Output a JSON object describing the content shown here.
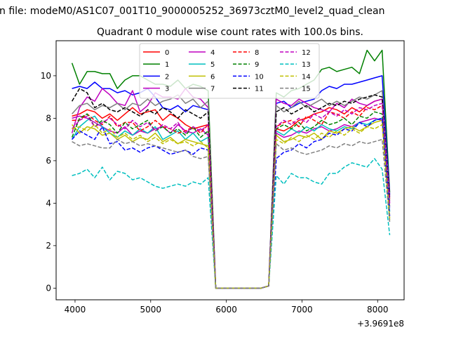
{
  "suptitle": "n file: modeM0/AS1C07_001T10_9000005252_36973cztM0_level2_quad_clean",
  "chart_data": {
    "type": "line",
    "title": "Quadrant 0 module wise count rates with 100.0s bins.",
    "xlabel": "",
    "ylabel": "",
    "x_offset_label": "+3.9691e8",
    "xlim": [
      3750,
      8350
    ],
    "ylim": [
      -0.55,
      11.65
    ],
    "xticks": [
      4000,
      5000,
      6000,
      7000,
      8000
    ],
    "yticks": [
      0,
      2,
      4,
      6,
      8,
      10
    ],
    "grid": false,
    "legend_position": "upper-center",
    "legend_columns": 4,
    "x": [
      3960,
      4060,
      4160,
      4260,
      4360,
      4460,
      4560,
      4660,
      4760,
      4860,
      4960,
      5060,
      5160,
      5260,
      5360,
      5460,
      5560,
      5660,
      5760,
      5860,
      5960,
      6060,
      6160,
      6260,
      6360,
      6460,
      6560,
      6660,
      6760,
      6860,
      6960,
      7060,
      7160,
      7260,
      7360,
      7460,
      7560,
      7660,
      7760,
      7860,
      7960,
      8060,
      8160
    ],
    "series": [
      {
        "name": "0",
        "color": "#ff0000",
        "dash": "solid",
        "values": [
          8.1,
          8.2,
          8.4,
          8.3,
          8.0,
          8.2,
          7.9,
          8.2,
          8.5,
          8.2,
          8.3,
          8.4,
          7.9,
          8.2,
          8.0,
          7.7,
          7.5,
          7.6,
          7.7,
          0.0,
          0.0,
          0.0,
          0.0,
          0.0,
          0.0,
          0.0,
          0.1,
          7.5,
          7.4,
          7.6,
          7.9,
          8.0,
          8.2,
          8.3,
          8.5,
          8.4,
          8.2,
          8.5,
          8.3,
          8.6,
          8.8,
          8.9,
          4.2
        ]
      },
      {
        "name": "1",
        "color": "#008000",
        "dash": "solid",
        "values": [
          10.6,
          9.6,
          10.2,
          10.2,
          10.1,
          10.1,
          9.4,
          9.8,
          10.0,
          10.0,
          9.8,
          9.6,
          9.6,
          9.5,
          9.8,
          9.4,
          9.6,
          9.5,
          9.3,
          0.0,
          0.0,
          0.0,
          0.0,
          0.0,
          0.0,
          0.0,
          0.1,
          9.2,
          9.0,
          9.3,
          9.4,
          9.6,
          9.8,
          10.3,
          10.4,
          10.2,
          10.3,
          10.4,
          10.1,
          11.2,
          10.7,
          11.2,
          4.5
        ]
      },
      {
        "name": "2",
        "color": "#0000ff",
        "dash": "solid",
        "values": [
          9.4,
          9.5,
          9.4,
          9.7,
          9.4,
          9.4,
          9.2,
          9.3,
          9.1,
          9.2,
          9.4,
          9.0,
          8.5,
          8.4,
          8.6,
          8.3,
          8.6,
          8.5,
          8.4,
          0.0,
          0.0,
          0.0,
          0.0,
          0.0,
          0.0,
          0.0,
          0.1,
          8.7,
          8.8,
          8.5,
          8.7,
          8.8,
          8.9,
          9.3,
          9.5,
          9.4,
          9.6,
          9.6,
          9.7,
          9.8,
          9.9,
          10.0,
          4.4
        ]
      },
      {
        "name": "3",
        "color": "#bf00bf",
        "dash": "solid",
        "values": [
          8.0,
          8.1,
          8.0,
          7.8,
          7.6,
          7.4,
          7.3,
          7.6,
          7.2,
          7.4,
          7.3,
          7.5,
          7.6,
          7.3,
          7.7,
          7.4,
          7.3,
          7.5,
          7.2,
          0.0,
          0.0,
          0.0,
          0.0,
          0.0,
          0.0,
          0.0,
          0.1,
          7.3,
          7.1,
          7.2,
          7.4,
          7.3,
          7.5,
          7.6,
          7.4,
          7.5,
          7.7,
          7.6,
          7.8,
          7.9,
          8.0,
          7.9,
          3.8
        ]
      },
      {
        "name": "4",
        "color": "#bf00bf",
        "dash": "solid",
        "values": [
          7.3,
          8.5,
          9.0,
          8.8,
          9.4,
          9.1,
          8.7,
          8.6,
          9.3,
          8.3,
          8.6,
          9.2,
          9.0,
          9.0,
          8.9,
          9.4,
          9.0,
          8.9,
          8.5,
          0.0,
          0.0,
          0.0,
          0.0,
          0.0,
          0.0,
          0.0,
          0.1,
          8.9,
          8.7,
          8.6,
          8.9,
          8.7,
          8.5,
          8.4,
          8.3,
          8.7,
          8.5,
          8.9,
          8.7,
          8.6,
          8.8,
          8.9,
          4.3
        ]
      },
      {
        "name": "5",
        "color": "#00bfbf",
        "dash": "solid",
        "values": [
          7.0,
          7.6,
          7.9,
          8.1,
          7.6,
          7.3,
          7.1,
          7.4,
          7.2,
          7.5,
          7.3,
          7.6,
          7.0,
          7.2,
          7.4,
          7.0,
          7.3,
          6.9,
          7.1,
          0.0,
          0.0,
          0.0,
          0.0,
          0.0,
          0.0,
          0.0,
          0.1,
          7.4,
          7.2,
          7.5,
          7.3,
          7.6,
          7.4,
          7.7,
          7.5,
          7.4,
          7.6,
          7.5,
          7.8,
          7.7,
          7.9,
          8.0,
          3.6
        ]
      },
      {
        "name": "6",
        "color": "#bfbf00",
        "dash": "solid",
        "values": [
          7.7,
          7.3,
          7.6,
          7.5,
          7.2,
          7.3,
          7.0,
          7.2,
          6.9,
          7.1,
          7.0,
          7.3,
          6.9,
          7.1,
          6.8,
          7.0,
          6.9,
          6.8,
          6.7,
          0.0,
          0.0,
          0.0,
          0.0,
          0.0,
          0.0,
          0.0,
          0.1,
          7.2,
          6.9,
          7.0,
          7.2,
          7.1,
          7.3,
          7.0,
          7.4,
          7.3,
          7.5,
          7.6,
          7.4,
          7.6,
          7.8,
          7.9,
          3.2
        ]
      },
      {
        "name": "7",
        "color": "#808080",
        "dash": "solid",
        "values": [
          8.2,
          8.6,
          8.7,
          8.4,
          8.6,
          8.5,
          8.7,
          8.4,
          8.7,
          8.6,
          8.9,
          8.6,
          8.8,
          8.9,
          9.1,
          8.7,
          8.9,
          8.5,
          8.8,
          0.0,
          0.0,
          0.0,
          0.0,
          0.0,
          0.0,
          0.0,
          0.1,
          8.6,
          8.3,
          8.5,
          8.8,
          8.5,
          8.7,
          8.9,
          8.6,
          8.8,
          8.6,
          8.8,
          9.0,
          8.9,
          9.1,
          9.3,
          4.1
        ]
      },
      {
        "name": "8",
        "color": "#ff0000",
        "dash": "dashed",
        "values": [
          7.9,
          7.9,
          8.2,
          7.9,
          7.7,
          8.1,
          7.6,
          7.8,
          7.8,
          7.4,
          7.6,
          7.9,
          7.6,
          7.5,
          7.3,
          7.4,
          7.6,
          7.3,
          7.7,
          0.0,
          0.0,
          0.0,
          0.0,
          0.0,
          0.0,
          0.0,
          0.1,
          7.6,
          7.8,
          7.9,
          7.6,
          8.1,
          7.9,
          7.7,
          8.3,
          8.2,
          8.0,
          8.3,
          8.1,
          8.5,
          8.4,
          8.6,
          3.9
        ]
      },
      {
        "name": "9",
        "color": "#008000",
        "dash": "dashed",
        "values": [
          7.1,
          8.0,
          8.2,
          7.6,
          7.9,
          7.7,
          7.3,
          7.8,
          7.5,
          7.7,
          7.9,
          7.4,
          7.6,
          7.3,
          7.5,
          7.2,
          7.6,
          7.1,
          7.4,
          0.0,
          0.0,
          0.0,
          0.0,
          0.0,
          0.0,
          0.0,
          0.1,
          7.5,
          7.7,
          7.5,
          7.8,
          7.4,
          7.6,
          7.9,
          7.7,
          7.8,
          8.0,
          7.7,
          8.1,
          8.0,
          8.3,
          8.2,
          3.9
        ]
      },
      {
        "name": "10",
        "color": "#0000ff",
        "dash": "dashed",
        "values": [
          7.0,
          7.4,
          7.2,
          7.0,
          7.6,
          6.8,
          6.9,
          6.5,
          6.6,
          6.4,
          6.6,
          6.7,
          6.5,
          6.3,
          6.4,
          6.5,
          6.3,
          6.6,
          6.5,
          0.0,
          0.0,
          0.0,
          0.0,
          0.0,
          0.0,
          0.0,
          0.1,
          6.1,
          6.4,
          6.5,
          6.8,
          6.6,
          6.9,
          7.0,
          7.3,
          7.2,
          7.5,
          7.4,
          7.8,
          7.6,
          7.9,
          8.0,
          3.4
        ]
      },
      {
        "name": "11",
        "color": "#000000",
        "dash": "dashed",
        "values": [
          8.8,
          9.4,
          9.2,
          8.5,
          8.7,
          8.4,
          8.3,
          8.5,
          8.3,
          8.1,
          8.4,
          8.2,
          8.5,
          8.3,
          8.0,
          8.4,
          8.2,
          8.0,
          8.3,
          0.0,
          0.0,
          0.0,
          0.0,
          0.0,
          0.0,
          0.0,
          0.1,
          8.3,
          8.5,
          8.2,
          8.4,
          8.6,
          8.3,
          8.5,
          8.7,
          8.6,
          8.8,
          8.7,
          8.9,
          9.0,
          9.1,
          9.0,
          4.2
        ]
      },
      {
        "name": "12",
        "color": "#bf00bf",
        "dash": "dashed",
        "values": [
          7.5,
          7.9,
          8.1,
          7.6,
          7.8,
          8.0,
          7.7,
          7.5,
          7.9,
          7.6,
          7.8,
          7.4,
          7.7,
          7.5,
          7.8,
          7.3,
          7.6,
          7.4,
          7.7,
          0.0,
          0.0,
          0.0,
          0.0,
          0.0,
          0.0,
          0.0,
          0.1,
          7.6,
          7.9,
          7.7,
          8.0,
          7.8,
          8.2,
          8.0,
          8.3,
          8.1,
          8.4,
          8.2,
          8.5,
          8.4,
          8.6,
          8.7,
          4.0
        ]
      },
      {
        "name": "13",
        "color": "#00bfbf",
        "dash": "dashed",
        "values": [
          5.3,
          5.4,
          5.6,
          5.2,
          5.7,
          5.1,
          5.5,
          5.4,
          5.1,
          5.2,
          5.0,
          4.8,
          4.7,
          4.8,
          4.9,
          4.8,
          5.0,
          4.9,
          5.2,
          0.0,
          0.0,
          0.0,
          0.0,
          0.0,
          0.0,
          0.0,
          0.1,
          5.3,
          4.9,
          5.4,
          5.2,
          5.2,
          5.0,
          4.9,
          5.4,
          5.4,
          5.7,
          5.9,
          5.8,
          5.7,
          6.1,
          5.6,
          2.5
        ]
      },
      {
        "name": "14",
        "color": "#bfbf00",
        "dash": "dashed",
        "values": [
          7.5,
          7.6,
          7.4,
          7.7,
          7.3,
          7.5,
          7.1,
          7.3,
          7.0,
          7.2,
          6.9,
          7.1,
          6.8,
          7.0,
          6.8,
          6.9,
          6.7,
          6.9,
          6.6,
          0.0,
          0.0,
          0.0,
          0.0,
          0.0,
          0.0,
          0.0,
          0.1,
          7.0,
          6.8,
          7.1,
          6.9,
          7.2,
          7.0,
          7.3,
          7.1,
          7.4,
          7.2,
          7.5,
          7.3,
          7.6,
          7.5,
          7.7,
          3.3
        ]
      },
      {
        "name": "15",
        "color": "#808080",
        "dash": "dashed",
        "values": [
          6.9,
          6.7,
          6.8,
          6.7,
          6.6,
          6.6,
          7.0,
          6.8,
          6.9,
          6.7,
          6.8,
          6.7,
          6.6,
          6.5,
          6.4,
          6.5,
          6.2,
          6.1,
          6.2,
          0.0,
          0.0,
          0.0,
          0.0,
          0.0,
          0.0,
          0.0,
          0.1,
          6.8,
          6.5,
          6.6,
          6.4,
          6.3,
          6.4,
          6.5,
          6.7,
          6.6,
          6.8,
          6.7,
          6.9,
          6.8,
          6.9,
          7.0,
          3.1
        ]
      }
    ]
  }
}
